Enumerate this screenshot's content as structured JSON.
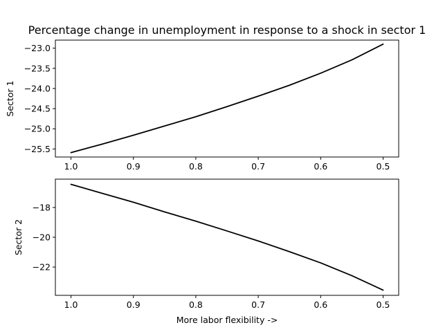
{
  "chart_data": [
    {
      "type": "line",
      "title": "Percentage change in unemployment in response to a shock in sector 1",
      "xlabel": "",
      "ylabel": "Sector 1",
      "x_inverted": true,
      "xlim": [
        1.025,
        0.475
      ],
      "ylim": [
        -25.7,
        -22.8
      ],
      "xticks": [
        1.0,
        0.9,
        0.8,
        0.7,
        0.6,
        0.5
      ],
      "xtick_labels": [
        "1.0",
        "0.9",
        "0.8",
        "0.7",
        "0.6",
        "0.5"
      ],
      "yticks": [
        -25.5,
        -25.0,
        -24.5,
        -24.0,
        -23.5,
        -23.0
      ],
      "ytick_labels": [
        "−25.5",
        "−25.0",
        "−24.5",
        "−24.0",
        "−23.5",
        "−23.0"
      ],
      "series": [
        {
          "color": "#000000",
          "x": [
            1.0,
            0.95,
            0.9,
            0.85,
            0.8,
            0.75,
            0.7,
            0.65,
            0.6,
            0.55,
            0.5
          ],
          "y": [
            -25.59,
            -25.38,
            -25.16,
            -24.93,
            -24.7,
            -24.45,
            -24.19,
            -23.92,
            -23.62,
            -23.29,
            -22.9
          ]
        }
      ]
    },
    {
      "type": "line",
      "title": "",
      "xlabel": "More labor flexibility ->",
      "ylabel": "Sector 2",
      "x_inverted": true,
      "xlim": [
        1.025,
        0.475
      ],
      "ylim": [
        -23.9,
        -16.1
      ],
      "xticks": [
        1.0,
        0.9,
        0.8,
        0.7,
        0.6,
        0.5
      ],
      "xtick_labels": [
        "1.0",
        "0.9",
        "0.8",
        "0.7",
        "0.6",
        "0.5"
      ],
      "yticks": [
        -22,
        -20,
        -18
      ],
      "ytick_labels": [
        "−22",
        "−20",
        "−18"
      ],
      "series": [
        {
          "color": "#000000",
          "x": [
            1.0,
            0.95,
            0.9,
            0.85,
            0.8,
            0.75,
            0.7,
            0.65,
            0.6,
            0.55,
            0.5
          ],
          "y": [
            -16.45,
            -17.05,
            -17.65,
            -18.3,
            -18.92,
            -19.58,
            -20.25,
            -20.97,
            -21.72,
            -22.58,
            -23.55
          ]
        }
      ]
    }
  ]
}
